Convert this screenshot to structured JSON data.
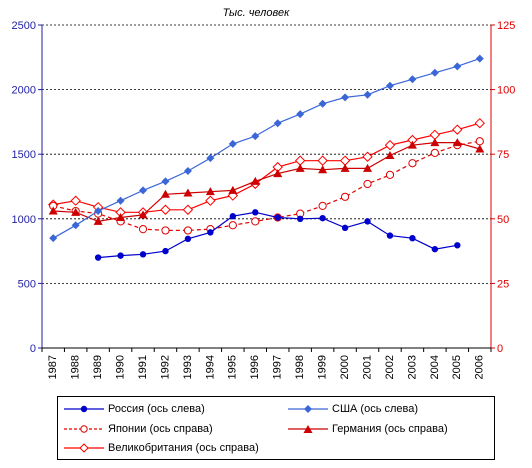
{
  "chart_data": {
    "type": "line",
    "title": "Тыс. человек",
    "x": [
      "1987",
      "1988",
      "1989",
      "1990",
      "1991",
      "1992",
      "1993",
      "1994",
      "1995",
      "1996",
      "1997",
      "1998",
      "1999",
      "2000",
      "2001",
      "2002",
      "2003",
      "2004",
      "2005",
      "2006"
    ],
    "y_left": {
      "min": 0,
      "max": 2500,
      "ticks": [
        0,
        500,
        1000,
        1500,
        2000,
        2500
      ],
      "color": "#1f1fa6"
    },
    "y_right": {
      "min": 0,
      "max": 125,
      "ticks": [
        0,
        25,
        50,
        75,
        100,
        125
      ],
      "color": "#e00000"
    },
    "grid": "horizontal dashed",
    "legend_position": "bottom",
    "series": [
      {
        "name": "Россия (ось слева)",
        "axis": "left",
        "color": "#0000cc",
        "marker": "circle-filled",
        "dash": false,
        "values": [
          null,
          null,
          700,
          715,
          725,
          750,
          845,
          895,
          1020,
          1050,
          1010,
          1000,
          1005,
          930,
          980,
          870,
          850,
          765,
          795,
          null
        ]
      },
      {
        "name": "США (ось слева)",
        "axis": "left",
        "color": "#3a66d8",
        "marker": "diamond-filled",
        "dash": false,
        "values": [
          850,
          950,
          1060,
          1140,
          1220,
          1290,
          1370,
          1470,
          1580,
          1640,
          1740,
          1810,
          1890,
          1940,
          1960,
          2030,
          2080,
          2130,
          2180,
          2240
        ]
      },
      {
        "name": "Японии (ось справа)",
        "axis": "right",
        "color": "#e00000",
        "marker": "circle-open",
        "dash": true,
        "values": [
          55,
          53,
          52,
          49,
          46,
          45.5,
          45.5,
          46,
          47.5,
          49,
          50.5,
          52,
          55,
          58.5,
          63.5,
          67,
          71.5,
          75.5,
          78.5,
          80
        ]
      },
      {
        "name": "Германия (ось справа)",
        "axis": "right",
        "color": "#cc0000",
        "marker": "triangle-filled",
        "dash": false,
        "values": [
          53,
          52.5,
          49,
          50.5,
          51.5,
          59.5,
          60,
          60.5,
          61,
          64.5,
          67.5,
          69.5,
          69,
          69.5,
          69.5,
          74.5,
          78.5,
          79.5,
          79.5,
          77
        ]
      },
      {
        "name": "Великобритания (ось справа)",
        "axis": "right",
        "color": "#ff0000",
        "marker": "diamond-open",
        "dash": false,
        "values": [
          55.5,
          57,
          54.5,
          52.5,
          52.5,
          53.5,
          53.5,
          57,
          59,
          63.5,
          70,
          72.5,
          72.5,
          72.5,
          74,
          78.5,
          80.5,
          82.5,
          84.5,
          87
        ]
      }
    ]
  },
  "legend": {
    "russia": "Россия (ось слева)",
    "usa": "США (ось слева)",
    "japan": "Японии (ось справа)",
    "germany": "Германия (ось справа)",
    "uk": "Великобритания (ось справа)"
  }
}
